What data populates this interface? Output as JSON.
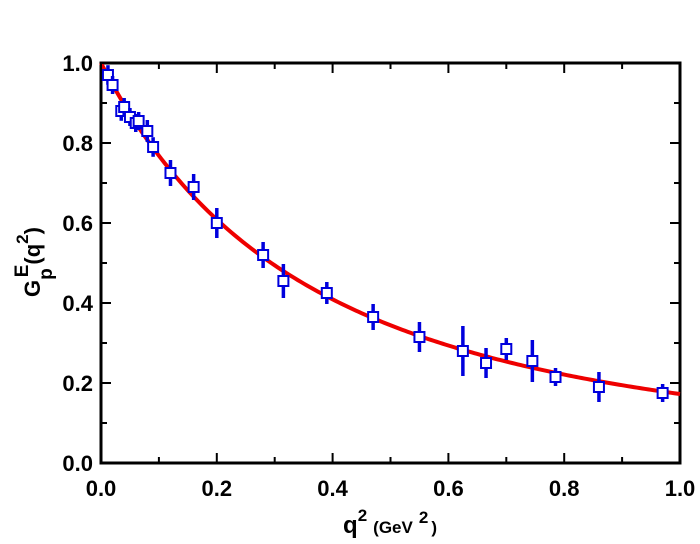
{
  "chart_data": {
    "type": "scatter",
    "title": "",
    "xlabel": {
      "base": "q",
      "sup": "2",
      "unit_open": "(GeV",
      "unit_sup": "2",
      "unit_close": ")"
    },
    "ylabel": {
      "base": "G",
      "sub": "p",
      "sup": "E",
      "arg_open": "(q",
      "arg_sup": "2",
      "arg_close": ")"
    },
    "xlim": [
      0,
      1.0
    ],
    "ylim": [
      0,
      1.0
    ],
    "xticks": [
      "0.0",
      "0.2",
      "0.4",
      "0.6",
      "0.8",
      "1.0"
    ],
    "yticks": [
      "0.0",
      "0.2",
      "0.4",
      "0.6",
      "0.8",
      "1.0"
    ],
    "grid": false,
    "colors": {
      "points": "#0000dd",
      "curve": "#ee0000",
      "axes": "#000000"
    },
    "series": [
      {
        "kind": "points",
        "marker": "open-square",
        "x": [
          0.012,
          0.02,
          0.035,
          0.04,
          0.05,
          0.06,
          0.065,
          0.08,
          0.09,
          0.12,
          0.16,
          0.2,
          0.28,
          0.315,
          0.39,
          0.47,
          0.55,
          0.625,
          0.665,
          0.7,
          0.745,
          0.785,
          0.86,
          0.97
        ],
        "y": [
          0.97,
          0.945,
          0.88,
          0.89,
          0.865,
          0.85,
          0.855,
          0.83,
          0.79,
          0.725,
          0.69,
          0.6,
          0.52,
          0.455,
          0.425,
          0.365,
          0.315,
          0.28,
          0.25,
          0.285,
          0.255,
          0.215,
          0.19,
          0.175
        ],
        "yerr": [
          0.012,
          0.01,
          0.012,
          0.01,
          0.01,
          0.01,
          0.01,
          0.015,
          0.012,
          0.02,
          0.02,
          0.025,
          0.02,
          0.03,
          0.015,
          0.02,
          0.025,
          0.05,
          0.025,
          0.015,
          0.04,
          0.01,
          0.025,
          0.01
        ]
      },
      {
        "kind": "curve",
        "model": "dipole",
        "formula": "1/(1+x/0.71)^2",
        "x_range": [
          0,
          1.0
        ]
      }
    ]
  }
}
